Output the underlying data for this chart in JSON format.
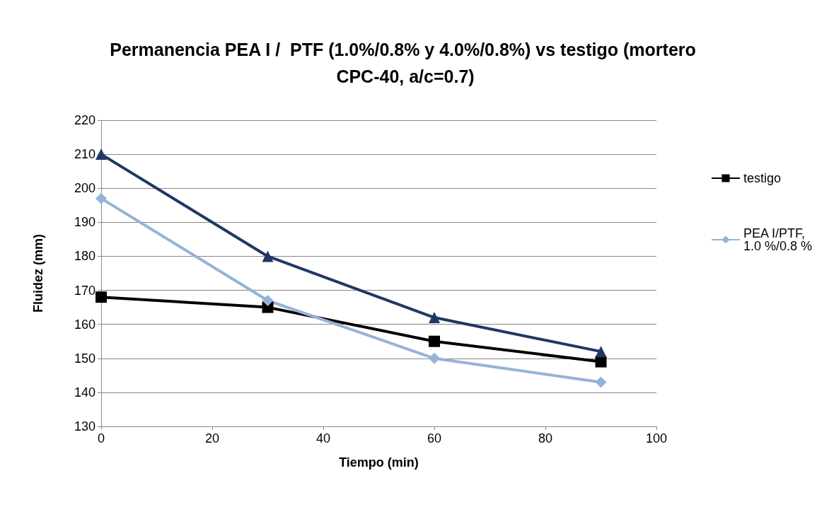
{
  "chart_data": {
    "type": "line",
    "title": "Permanencia PEA I /  PTF (1.0%/0.8% y 4.0%/0.8%) vs testigo (mortero CPC-40, a/c=0.7)",
    "xlabel": "Tiempo (min)",
    "ylabel": "Fluidez (mm)",
    "x": [
      0,
      30,
      60,
      90
    ],
    "series": [
      {
        "name": "testigo",
        "color": "#000000",
        "marker": "square",
        "values": [
          168,
          165,
          155,
          149
        ]
      },
      {
        "name": "PEA I/PTF, 1.0 %/0.8 %",
        "color": "#95b3d7",
        "marker": "diamond",
        "values": [
          197,
          167,
          150,
          143
        ]
      },
      {
        "color": "#1f3864",
        "marker": "triangle",
        "values": [
          210,
          180,
          162,
          152
        ]
      }
    ],
    "xlim": [
      0,
      100
    ],
    "xticks": [
      0,
      20,
      40,
      60,
      80,
      100
    ],
    "ylim": [
      130,
      220
    ],
    "yticks": [
      130,
      140,
      150,
      160,
      170,
      180,
      190,
      200,
      210,
      220
    ],
    "grid": "y",
    "legend": "right"
  }
}
